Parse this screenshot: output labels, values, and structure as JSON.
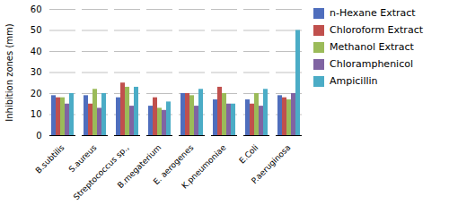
{
  "chart_data": {
    "type": "bar",
    "categories": [
      "B.subtilis",
      "S.aureus",
      "Streptococcus sp.,",
      "B.megaterium",
      "E. aerogenes",
      "K.pneumoniae",
      "E.Coli",
      "P.aeruginosa"
    ],
    "series": [
      {
        "name": "n-Hexane Extract",
        "color": "#4F6EBD",
        "values": [
          19,
          19,
          18,
          14,
          20,
          17,
          17,
          19
        ]
      },
      {
        "name": "Chloroform Extract",
        "color": "#C0504D",
        "values": [
          18,
          15,
          25,
          18,
          20,
          23,
          15,
          18
        ]
      },
      {
        "name": "Methanol Extract",
        "color": "#9BBB59",
        "values": [
          18,
          22,
          23,
          13,
          19,
          20,
          20,
          17
        ]
      },
      {
        "name": "Chloramphenicol",
        "color": "#8064A2",
        "values": [
          15,
          13,
          14,
          12,
          14,
          15,
          14,
          20
        ]
      },
      {
        "name": "Ampicillin",
        "color": "#4BACC6",
        "values": [
          20,
          20,
          23,
          16,
          22,
          15,
          22,
          50
        ]
      }
    ],
    "ylabel": "Inhibition zones (mm)",
    "ylim": [
      0,
      60
    ],
    "yticks": [
      0,
      10,
      20,
      30,
      40,
      50,
      60
    ],
    "grid": true,
    "legend": "right"
  }
}
